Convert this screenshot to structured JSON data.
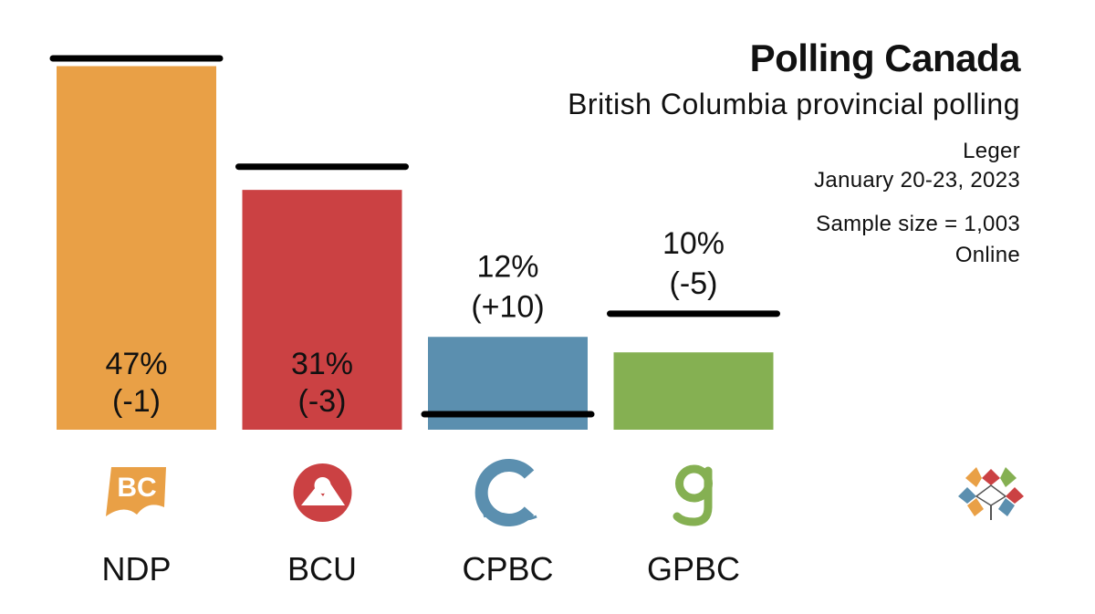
{
  "header": {
    "title": "Polling Canada",
    "subtitle": "British Columbia provincial polling",
    "pollster": "Leger",
    "dates": "January 20-23, 2023",
    "sample": "Sample size = 1,003",
    "method": "Online"
  },
  "chart_data": {
    "type": "bar",
    "title": "Polling Canada",
    "subtitle": "British Columbia provincial polling",
    "categories": [
      "NDP",
      "BCU",
      "CPBC",
      "GPBC"
    ],
    "series": [
      {
        "values": [
          47,
          31,
          12,
          10
        ]
      },
      {
        "values": [
          48,
          34,
          2,
          15
        ]
      }
    ],
    "value_labels": [
      "47%",
      "31%",
      "12%",
      "10%"
    ],
    "change_labels": [
      "(-1)",
      "(-3)",
      "(+10)",
      "(-5)"
    ],
    "colors": [
      "#E9A046",
      "#CB4143",
      "#5B8FAF",
      "#85B052"
    ],
    "ylim": [
      0,
      48
    ],
    "grid": false,
    "logos": [
      "bc-ndp-logo",
      "bc-united-logo",
      "conservative-bc-logo",
      "green-bc-logo"
    ]
  },
  "brand_logo": "polling-canada-logo"
}
